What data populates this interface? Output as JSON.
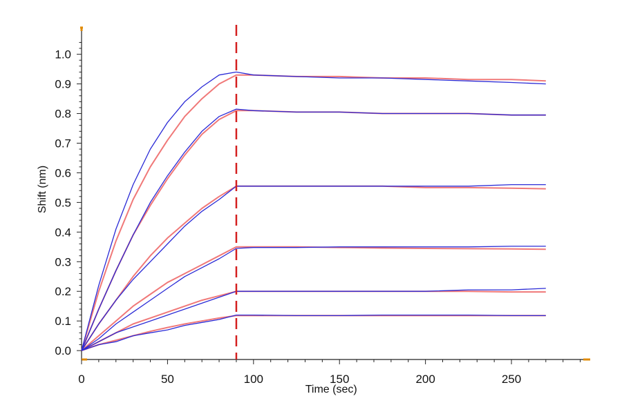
{
  "chart_data": {
    "type": "line",
    "title": "",
    "xlabel": "Time (sec)",
    "ylabel": "Shift (nm)",
    "xlim": [
      0,
      295
    ],
    "ylim": [
      -0.03,
      1.09
    ],
    "xticks": [
      0,
      50,
      100,
      150,
      200,
      250
    ],
    "xtick_labels": [
      "0",
      "50",
      "100",
      "150",
      "200",
      "250"
    ],
    "yticks": [
      0.0,
      0.1,
      0.2,
      0.3,
      0.4,
      0.5,
      0.6,
      0.7,
      0.8,
      0.9,
      1.0
    ],
    "ytick_labels": [
      "0.0",
      "0.1",
      "0.2",
      "0.3",
      "0.4",
      "0.5",
      "0.6",
      "0.7",
      "0.8",
      "0.9",
      "1.0"
    ],
    "grid": false,
    "legend": "none",
    "dissociation_start": 90,
    "colors": {
      "measured": "#2a2ad6",
      "fit": "#f07878",
      "marker_line": "#d42020",
      "axis": "#222222",
      "axis_end_marker": "#e08a00"
    },
    "series": [
      {
        "curve": 1,
        "t": [
          0,
          10,
          20,
          30,
          40,
          50,
          60,
          70,
          80,
          90,
          100,
          125,
          150,
          175,
          200,
          225,
          250,
          270
        ],
        "measured": [
          0.0,
          0.22,
          0.41,
          0.56,
          0.68,
          0.77,
          0.84,
          0.89,
          0.93,
          0.94,
          0.93,
          0.925,
          0.92,
          0.92,
          0.915,
          0.91,
          0.905,
          0.9
        ],
        "fit": [
          0.0,
          0.2,
          0.37,
          0.51,
          0.62,
          0.71,
          0.79,
          0.85,
          0.9,
          0.93,
          0.93,
          0.925,
          0.925,
          0.92,
          0.92,
          0.915,
          0.915,
          0.91
        ]
      },
      {
        "curve": 2,
        "t": [
          0,
          10,
          20,
          30,
          40,
          50,
          60,
          70,
          80,
          90,
          100,
          125,
          150,
          175,
          200,
          225,
          250,
          270
        ],
        "measured": [
          0.0,
          0.14,
          0.27,
          0.39,
          0.5,
          0.59,
          0.67,
          0.74,
          0.79,
          0.815,
          0.81,
          0.805,
          0.805,
          0.8,
          0.8,
          0.8,
          0.795,
          0.795
        ],
        "fit": [
          0.0,
          0.14,
          0.27,
          0.39,
          0.49,
          0.58,
          0.66,
          0.73,
          0.78,
          0.81,
          0.81,
          0.805,
          0.805,
          0.8,
          0.8,
          0.8,
          0.795,
          0.795
        ]
      },
      {
        "curve": 3,
        "t": [
          0,
          10,
          20,
          30,
          40,
          50,
          60,
          70,
          80,
          90,
          100,
          125,
          150,
          175,
          200,
          225,
          250,
          270
        ],
        "measured": [
          0.0,
          0.09,
          0.17,
          0.24,
          0.3,
          0.36,
          0.42,
          0.47,
          0.51,
          0.555,
          0.555,
          0.555,
          0.555,
          0.555,
          0.555,
          0.555,
          0.56,
          0.56
        ],
        "fit": [
          0.0,
          0.09,
          0.17,
          0.25,
          0.32,
          0.38,
          0.43,
          0.48,
          0.52,
          0.555,
          0.555,
          0.555,
          0.555,
          0.555,
          0.55,
          0.55,
          0.548,
          0.546
        ]
      },
      {
        "curve": 4,
        "t": [
          0,
          10,
          20,
          30,
          40,
          50,
          60,
          70,
          80,
          90,
          100,
          125,
          150,
          175,
          200,
          225,
          250,
          270
        ],
        "measured": [
          0.0,
          0.04,
          0.09,
          0.13,
          0.17,
          0.21,
          0.25,
          0.28,
          0.31,
          0.345,
          0.348,
          0.348,
          0.35,
          0.35,
          0.35,
          0.35,
          0.352,
          0.352
        ],
        "fit": [
          0.0,
          0.05,
          0.1,
          0.15,
          0.19,
          0.23,
          0.26,
          0.29,
          0.32,
          0.35,
          0.35,
          0.35,
          0.348,
          0.346,
          0.345,
          0.344,
          0.343,
          0.342
        ]
      },
      {
        "curve": 5,
        "t": [
          0,
          10,
          20,
          30,
          40,
          50,
          60,
          70,
          80,
          90,
          100,
          125,
          150,
          175,
          200,
          225,
          250,
          270
        ],
        "measured": [
          0.0,
          0.03,
          0.06,
          0.08,
          0.1,
          0.12,
          0.14,
          0.16,
          0.18,
          0.2,
          0.2,
          0.2,
          0.2,
          0.2,
          0.2,
          0.205,
          0.205,
          0.21
        ],
        "fit": [
          0.0,
          0.03,
          0.06,
          0.09,
          0.11,
          0.13,
          0.15,
          0.17,
          0.185,
          0.2,
          0.2,
          0.2,
          0.2,
          0.2,
          0.2,
          0.2,
          0.198,
          0.198
        ]
      },
      {
        "curve": 6,
        "t": [
          0,
          10,
          20,
          30,
          40,
          50,
          60,
          70,
          80,
          90,
          100,
          125,
          150,
          175,
          200,
          225,
          250,
          270
        ],
        "measured": [
          0.0,
          0.02,
          0.03,
          0.05,
          0.06,
          0.07,
          0.085,
          0.095,
          0.105,
          0.12,
          0.12,
          0.118,
          0.118,
          0.12,
          0.12,
          0.12,
          0.118,
          0.118
        ],
        "fit": [
          0.0,
          0.02,
          0.035,
          0.05,
          0.065,
          0.078,
          0.09,
          0.1,
          0.11,
          0.118,
          0.118,
          0.118,
          0.118,
          0.118,
          0.118,
          0.118,
          0.118,
          0.118
        ]
      }
    ]
  }
}
